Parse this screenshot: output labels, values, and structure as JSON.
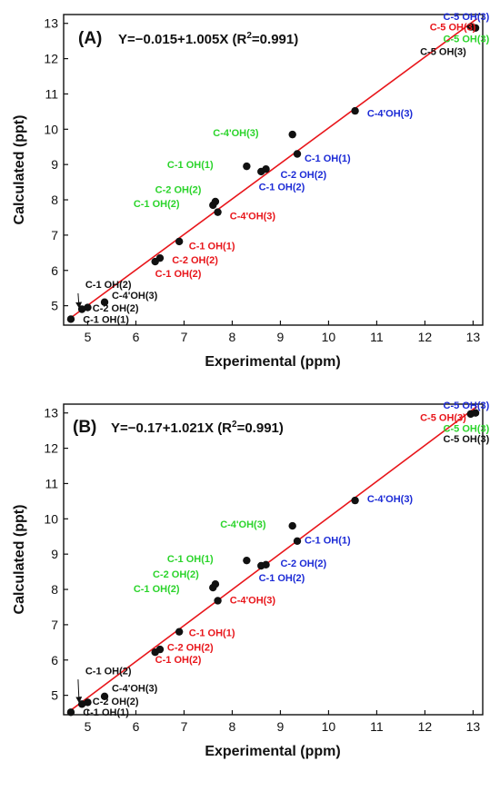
{
  "colors": {
    "black": "#111111",
    "red": "#e8161b",
    "blue": "#1c2bd6",
    "green": "#2bd42b",
    "fit_line": "#e8161b"
  },
  "chart_data": [
    {
      "type": "scatter",
      "panel_label": "(A)",
      "equation": "Y=−0.015+1.005X (R",
      "equation_sup": "2",
      "equation_tail": "=0.991)",
      "xlabel": "Experimental (ppm)",
      "ylabel": "Calculated (ppt)",
      "xlim": [
        4.5,
        13.2
      ],
      "ylim": [
        4.45,
        13.25
      ],
      "xticks": [
        5,
        6,
        7,
        8,
        9,
        10,
        11,
        12,
        13
      ],
      "yticks": [
        5,
        6,
        7,
        8,
        9,
        10,
        11,
        12,
        13
      ],
      "fit": {
        "intercept": -0.015,
        "slope": 1.005
      },
      "points": [
        {
          "x": 4.65,
          "y": 4.62
        },
        {
          "x": 4.88,
          "y": 4.9
        },
        {
          "x": 5.0,
          "y": 4.95
        },
        {
          "x": 5.35,
          "y": 5.1
        },
        {
          "x": 6.4,
          "y": 6.25
        },
        {
          "x": 6.5,
          "y": 6.35
        },
        {
          "x": 6.9,
          "y": 6.82
        },
        {
          "x": 7.6,
          "y": 7.85
        },
        {
          "x": 7.65,
          "y": 7.95
        },
        {
          "x": 7.7,
          "y": 7.65
        },
        {
          "x": 8.3,
          "y": 8.95
        },
        {
          "x": 8.6,
          "y": 8.8
        },
        {
          "x": 8.7,
          "y": 8.87
        },
        {
          "x": 9.25,
          "y": 9.85
        },
        {
          "x": 9.35,
          "y": 9.3
        },
        {
          "x": 10.55,
          "y": 10.52
        },
        {
          "x": 12.95,
          "y": 12.9
        },
        {
          "x": 13.05,
          "y": 12.87
        }
      ],
      "labels": [
        {
          "text": "C-5 OH(3)",
          "color": "blue",
          "x": 12.38,
          "y": 13.1
        },
        {
          "text": "C-5 OH(3)",
          "color": "red",
          "x": 12.1,
          "y": 12.8
        },
        {
          "text": "C-5 OH(3)",
          "color": "green",
          "x": 12.38,
          "y": 12.47
        },
        {
          "text": "C-5 OH(3)",
          "color": "black",
          "x": 11.9,
          "y": 12.1
        },
        {
          "text": "C-4'OH(3)",
          "color": "blue",
          "x": 10.8,
          "y": 10.35
        },
        {
          "text": "C-4'OH(3)",
          "color": "green",
          "x": 7.6,
          "y": 9.8
        },
        {
          "text": "C-1 OH(1)",
          "color": "blue",
          "x": 9.5,
          "y": 9.08
        },
        {
          "text": "C-1 OH(1)",
          "color": "green",
          "x": 6.65,
          "y": 8.9
        },
        {
          "text": "C-2 OH(2)",
          "color": "blue",
          "x": 9.0,
          "y": 8.62
        },
        {
          "text": "C-1 OH(2)",
          "color": "blue",
          "x": 8.55,
          "y": 8.27
        },
        {
          "text": "C-2 OH(2)",
          "color": "green",
          "x": 6.4,
          "y": 8.2
        },
        {
          "text": "C-1 OH(2)",
          "color": "green",
          "x": 5.95,
          "y": 7.8
        },
        {
          "text": "C-4'OH(3)",
          "color": "red",
          "x": 7.95,
          "y": 7.45
        },
        {
          "text": "C-1 OH(1)",
          "color": "red",
          "x": 7.1,
          "y": 6.6
        },
        {
          "text": "C-2 OH(2)",
          "color": "red",
          "x": 6.75,
          "y": 6.2
        },
        {
          "text": "C-1 OH(2)",
          "color": "red",
          "x": 6.4,
          "y": 5.82
        },
        {
          "text": "C-1 OH(2)",
          "color": "black",
          "x": 4.95,
          "y": 5.5
        },
        {
          "text": "C-4'OH(3)",
          "color": "black",
          "x": 5.5,
          "y": 5.2
        },
        {
          "text": "C-2 OH(2)",
          "color": "black",
          "x": 5.1,
          "y": 4.83
        },
        {
          "text": "C-1 OH(1)",
          "color": "black",
          "x": 4.9,
          "y": 4.52
        }
      ],
      "arrow": {
        "from": [
          4.8,
          5.35
        ],
        "to": [
          4.82,
          4.97
        ]
      }
    },
    {
      "type": "scatter",
      "panel_label": "(B)",
      "equation": "Y=−0.17+1.021X (R",
      "equation_sup": "2",
      "equation_tail": "=0.991)",
      "xlabel": "Experimental (ppm)",
      "ylabel": "Calculated (ppt)",
      "xlim": [
        4.5,
        13.2
      ],
      "ylim": [
        4.45,
        13.25
      ],
      "xticks": [
        5,
        6,
        7,
        8,
        9,
        10,
        11,
        12,
        13
      ],
      "yticks": [
        5,
        6,
        7,
        8,
        9,
        10,
        11,
        12,
        13
      ],
      "fit": {
        "intercept": -0.17,
        "slope": 1.021
      },
      "points": [
        {
          "x": 4.65,
          "y": 4.52
        },
        {
          "x": 4.88,
          "y": 4.75
        },
        {
          "x": 5.0,
          "y": 4.8
        },
        {
          "x": 5.35,
          "y": 4.97
        },
        {
          "x": 6.4,
          "y": 6.22
        },
        {
          "x": 6.5,
          "y": 6.3
        },
        {
          "x": 6.9,
          "y": 6.8
        },
        {
          "x": 7.6,
          "y": 8.05
        },
        {
          "x": 7.65,
          "y": 8.15
        },
        {
          "x": 7.7,
          "y": 7.68
        },
        {
          "x": 8.3,
          "y": 8.82
        },
        {
          "x": 8.6,
          "y": 8.67
        },
        {
          "x": 8.7,
          "y": 8.7
        },
        {
          "x": 9.25,
          "y": 9.8
        },
        {
          "x": 9.35,
          "y": 9.37
        },
        {
          "x": 10.55,
          "y": 10.52
        },
        {
          "x": 12.95,
          "y": 12.97
        },
        {
          "x": 13.05,
          "y": 13.0
        }
      ],
      "labels": [
        {
          "text": "C-5 OH(3)",
          "color": "blue",
          "x": 12.38,
          "y": 13.12
        },
        {
          "text": "C-5 OH(3)",
          "color": "red",
          "x": 11.9,
          "y": 12.77
        },
        {
          "text": "C-5 OH(3)",
          "color": "green",
          "x": 12.38,
          "y": 12.47
        },
        {
          "text": "C-5 OH(3)",
          "color": "black",
          "x": 12.38,
          "y": 12.17
        },
        {
          "text": "C-4'OH(3)",
          "color": "blue",
          "x": 10.8,
          "y": 10.47
        },
        {
          "text": "C-4'OH(3)",
          "color": "green",
          "x": 7.75,
          "y": 9.75
        },
        {
          "text": "C-1 OH(1)",
          "color": "blue",
          "x": 9.5,
          "y": 9.3
        },
        {
          "text": "C-1 OH(1)",
          "color": "green",
          "x": 6.65,
          "y": 8.77
        },
        {
          "text": "C-2 OH(2)",
          "color": "blue",
          "x": 9.0,
          "y": 8.65
        },
        {
          "text": "C-1 OH(2)",
          "color": "blue",
          "x": 8.55,
          "y": 8.23
        },
        {
          "text": "C-2 OH(2)",
          "color": "green",
          "x": 6.35,
          "y": 8.33
        },
        {
          "text": "C-1 OH(2)",
          "color": "green",
          "x": 5.95,
          "y": 7.93
        },
        {
          "text": "C-4'OH(3)",
          "color": "red",
          "x": 7.95,
          "y": 7.6
        },
        {
          "text": "C-1 OH(1)",
          "color": "red",
          "x": 7.1,
          "y": 6.67
        },
        {
          "text": "C-2 OH(2)",
          "color": "red",
          "x": 6.65,
          "y": 6.27
        },
        {
          "text": "C-1 OH(2)",
          "color": "red",
          "x": 6.4,
          "y": 5.92
        },
        {
          "text": "C-1 OH(2)",
          "color": "black",
          "x": 4.95,
          "y": 5.6
        },
        {
          "text": "C-4'OH(3)",
          "color": "black",
          "x": 5.5,
          "y": 5.1
        },
        {
          "text": "C-2 OH(2)",
          "color": "black",
          "x": 5.1,
          "y": 4.73
        },
        {
          "text": "C-1 OH(1)",
          "color": "black",
          "x": 4.9,
          "y": 4.42
        }
      ],
      "arrow": {
        "from": [
          4.8,
          5.45
        ],
        "to": [
          4.82,
          4.83
        ]
      }
    }
  ]
}
